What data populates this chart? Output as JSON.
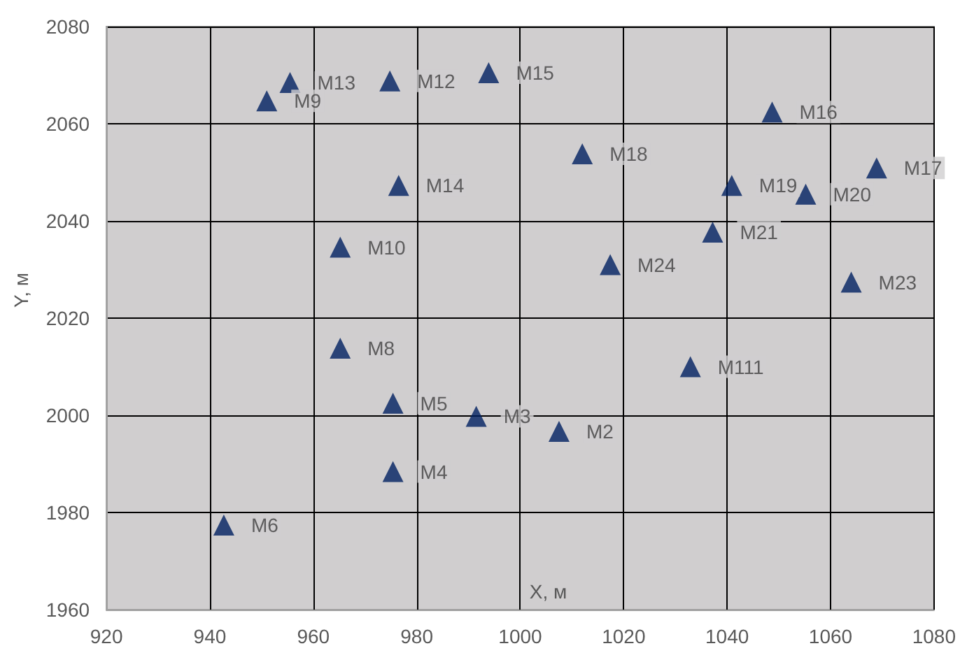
{
  "chart_data": {
    "type": "scatter",
    "xlabel": "X, м",
    "ylabel": "Y, м",
    "xlim": [
      920,
      1080
    ],
    "xticks": [
      920,
      940,
      960,
      980,
      1000,
      1020,
      1040,
      1060,
      1080
    ],
    "ylim": [
      1960,
      2080
    ],
    "yticks": [
      1960,
      1980,
      2000,
      2020,
      2040,
      2060,
      2080
    ],
    "grid": true,
    "marker": "triangle",
    "series": [
      {
        "color": "#002060",
        "x": [
          955.5,
          951,
          974.8,
          993.9,
          976.5,
          965.2,
          1048.7,
          1012,
          1068.9,
          1040.9,
          1055.2,
          1037.2,
          1017.4,
          1064,
          965.2,
          975.4,
          991.5,
          975.4,
          942.7,
          1007.5,
          1032.9
        ],
        "values": [
          2068.5,
          2064.7,
          2068.8,
          2070.5,
          2047.3,
          2034.6,
          2062.4,
          2053.8,
          2050.9,
          2047.3,
          2045.5,
          2037.7,
          2031,
          2027.4,
          2013.8,
          2002.5,
          1999.8,
          1988.4,
          1977.4,
          1996.7,
          2010
        ],
        "value_labels": [
          "M13",
          "M9",
          "M12",
          "M15",
          "M14",
          "M10",
          "M16",
          "M18",
          "M17",
          "M19",
          "M20",
          "M21",
          "M24",
          "M23",
          "M8",
          "M5",
          "M3",
          "M4",
          "M6",
          "M2",
          "M111"
        ]
      }
    ]
  }
}
